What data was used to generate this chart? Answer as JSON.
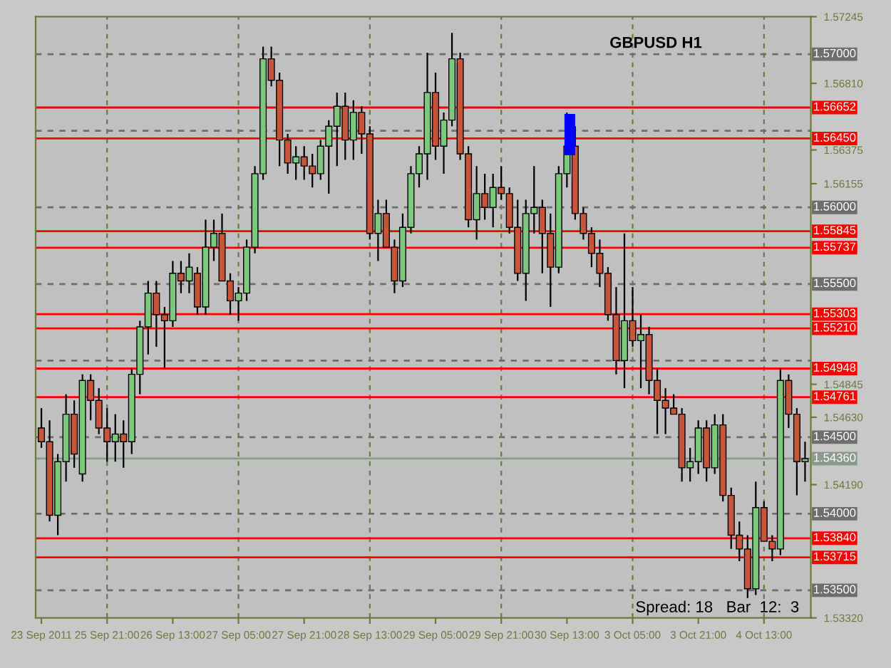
{
  "chart_data": {
    "type": "candlestick",
    "title": "GBPUSD H1",
    "categories": [
      "23 Sep 2011",
      null,
      null,
      null,
      null,
      null,
      null,
      null,
      "25 Sep 21:00",
      null,
      null,
      null,
      null,
      null,
      null,
      null,
      "26 Sep 13:00",
      null,
      null,
      null,
      null,
      null,
      null,
      null,
      "27 Sep 05:00",
      null,
      null,
      null,
      null,
      null,
      null,
      null,
      "27 Sep 21:00",
      null,
      null,
      null,
      null,
      null,
      null,
      null,
      "28 Sep 13:00",
      null,
      null,
      null,
      null,
      null,
      null,
      null,
      "29 Sep 05:00",
      null,
      null,
      null,
      null,
      null,
      null,
      null,
      "29 Sep 21:00",
      null,
      null,
      null,
      null,
      null,
      null,
      null,
      "30 Sep 13:00",
      null,
      null,
      null,
      null,
      null,
      null,
      null,
      "3 Oct 05:00",
      null,
      null,
      null,
      null,
      null,
      null,
      null,
      "3 Oct 21:00",
      null,
      null,
      null,
      null,
      null,
      null,
      null,
      "4 Oct 13:00",
      null,
      null,
      null,
      null,
      null
    ],
    "ohlc": [
      [
        1.5456,
        1.5469,
        1.5443,
        1.5447
      ],
      [
        1.5447,
        1.5461,
        1.5395,
        1.5399
      ],
      [
        1.5399,
        1.5439,
        1.5386,
        1.5434
      ],
      [
        1.5434,
        1.5478,
        1.5421,
        1.5465
      ],
      [
        1.5465,
        1.5474,
        1.543,
        1.5439
      ],
      [
        1.5426,
        1.5491,
        1.5421,
        1.5487
      ],
      [
        1.5487,
        1.5491,
        1.5461,
        1.5474
      ],
      [
        1.5474,
        1.5482,
        1.5452,
        1.5456
      ],
      [
        1.5456,
        1.5469,
        1.5434,
        1.5447
      ],
      [
        1.5447,
        1.5465,
        1.5434,
        1.5452
      ],
      [
        1.5452,
        1.5461,
        1.543,
        1.5447
      ],
      [
        1.5447,
        1.5495,
        1.5439,
        1.5491
      ],
      [
        1.5491,
        1.5526,
        1.5478,
        1.5522
      ],
      [
        1.5522,
        1.5552,
        1.5504,
        1.5544
      ],
      [
        1.5544,
        1.5552,
        1.5509,
        1.553
      ],
      [
        1.553,
        1.5535,
        1.5495,
        1.5526
      ],
      [
        1.5526,
        1.5565,
        1.5522,
        1.5557
      ],
      [
        1.5557,
        1.5565,
        1.5544,
        1.5552
      ],
      [
        1.5552,
        1.557,
        1.5544,
        1.5561
      ],
      [
        1.5557,
        1.5561,
        1.553,
        1.5535
      ],
      [
        1.5535,
        1.5592,
        1.553,
        1.5574
      ],
      [
        1.5574,
        1.5592,
        1.5565,
        1.5583
      ],
      [
        1.5583,
        1.5596,
        1.5552,
        1.5552
      ],
      [
        1.5552,
        1.5557,
        1.553,
        1.5539
      ],
      [
        1.5539,
        1.5548,
        1.5526,
        1.5544
      ],
      [
        1.5544,
        1.5579,
        1.5539,
        1.5574
      ],
      [
        1.5574,
        1.5627,
        1.557,
        1.5622
      ],
      [
        1.5622,
        1.5705,
        1.5618,
        1.5697
      ],
      [
        1.5697,
        1.5705,
        1.5679,
        1.5683
      ],
      [
        1.5683,
        1.5688,
        1.5627,
        1.5644
      ],
      [
        1.5644,
        1.5648,
        1.5622,
        1.5629
      ],
      [
        1.5629,
        1.564,
        1.5618,
        1.5633
      ],
      [
        1.5633,
        1.564,
        1.5618,
        1.5627
      ],
      [
        1.5627,
        1.5635,
        1.5613,
        1.5622
      ],
      [
        1.5622,
        1.5644,
        1.5618,
        1.564
      ],
      [
        1.564,
        1.5657,
        1.5609,
        1.5653
      ],
      [
        1.5653,
        1.5675,
        1.5627,
        1.5666
      ],
      [
        1.5666,
        1.5675,
        1.5631,
        1.5644
      ],
      [
        1.5644,
        1.567,
        1.5631,
        1.5662
      ],
      [
        1.5662,
        1.5666,
        1.5635,
        1.5648
      ],
      [
        1.5648,
        1.5653,
        1.5579,
        1.5583
      ],
      [
        1.5583,
        1.5605,
        1.5565,
        1.5596
      ],
      [
        1.5596,
        1.5605,
        1.5574,
        1.5574
      ],
      [
        1.5574,
        1.5579,
        1.5544,
        1.5552
      ],
      [
        1.5552,
        1.5596,
        1.5548,
        1.5587
      ],
      [
        1.5587,
        1.5627,
        1.5583,
        1.5622
      ],
      [
        1.5622,
        1.564,
        1.5613,
        1.5635
      ],
      [
        1.5635,
        1.5701,
        1.5618,
        1.5675
      ],
      [
        1.5675,
        1.5688,
        1.5631,
        1.564
      ],
      [
        1.564,
        1.5662,
        1.5622,
        1.5657
      ],
      [
        1.5657,
        1.5714,
        1.5653,
        1.5697
      ],
      [
        1.5697,
        1.5701,
        1.5631,
        1.5635
      ],
      [
        1.5635,
        1.564,
        1.5587,
        1.5592
      ],
      [
        1.5592,
        1.5627,
        1.5579,
        1.5609
      ],
      [
        1.5609,
        1.5622,
        1.5592,
        1.56
      ],
      [
        1.56,
        1.5622,
        1.5587,
        1.5613
      ],
      [
        1.5613,
        1.5627,
        1.5605,
        1.5609
      ],
      [
        1.5609,
        1.5613,
        1.5583,
        1.5587
      ],
      [
        1.5587,
        1.5605,
        1.5552,
        1.5557
      ],
      [
        1.5557,
        1.5605,
        1.5539,
        1.5596
      ],
      [
        1.5596,
        1.5627,
        1.5583,
        1.56
      ],
      [
        1.56,
        1.5605,
        1.5557,
        1.5583
      ],
      [
        1.5583,
        1.5596,
        1.5535,
        1.5561
      ],
      [
        1.5561,
        1.5627,
        1.5557,
        1.5622
      ],
      [
        1.5622,
        1.5662,
        1.5613,
        1.564
      ],
      [
        1.564,
        1.5653,
        1.5592,
        1.5596
      ],
      [
        1.5596,
        1.56,
        1.5579,
        1.5583
      ],
      [
        1.5583,
        1.5587,
        1.5561,
        1.557
      ],
      [
        1.557,
        1.5579,
        1.5548,
        1.5557
      ],
      [
        1.5557,
        1.5561,
        1.5526,
        1.553
      ],
      [
        1.553,
        1.5548,
        1.5491,
        1.55
      ],
      [
        1.55,
        1.5583,
        1.5482,
        1.5526
      ],
      [
        1.5526,
        1.5548,
        1.5509,
        1.5513
      ],
      [
        1.5513,
        1.553,
        1.5482,
        1.5517
      ],
      [
        1.5517,
        1.5522,
        1.5478,
        1.5487
      ],
      [
        1.5487,
        1.5495,
        1.5452,
        1.5474
      ],
      [
        1.5474,
        1.5482,
        1.5452,
        1.5469
      ],
      [
        1.5469,
        1.5478,
        1.5465,
        1.5465
      ],
      [
        1.5465,
        1.5469,
        1.5421,
        1.543
      ],
      [
        1.543,
        1.5443,
        1.5421,
        1.5434
      ],
      [
        1.5434,
        1.5461,
        1.5426,
        1.5456
      ],
      [
        1.5456,
        1.5461,
        1.5421,
        1.543
      ],
      [
        1.543,
        1.5465,
        1.5426,
        1.5458
      ],
      [
        1.5458,
        1.5465,
        1.5408,
        1.5412
      ],
      [
        1.5412,
        1.5417,
        1.5377,
        1.5386
      ],
      [
        1.5386,
        1.5395,
        1.5369,
        1.5377
      ],
      [
        1.5377,
        1.5386,
        1.5345,
        1.5351
      ],
      [
        1.5351,
        1.5421,
        1.5347,
        1.5404
      ],
      [
        1.5404,
        1.5408,
        1.5382,
        1.5382
      ],
      [
        1.5382,
        1.5386,
        1.5369,
        1.5377
      ],
      [
        1.5377,
        1.5495,
        1.5373,
        1.5487
      ],
      [
        1.5487,
        1.5491,
        1.5456,
        1.5465
      ],
      [
        1.5465,
        1.5469,
        1.5412,
        1.5434
      ],
      [
        1.5434,
        1.5447,
        1.5421,
        1.5436
      ]
    ],
    "ylim": [
      1.5332,
      1.57245
    ],
    "yticks": [
      {
        "value": 1.57245,
        "label": "1.57245"
      },
      {
        "value": 1.5681,
        "label": "1.56810"
      },
      {
        "value": 1.56375,
        "label": "1.56375"
      },
      {
        "value": 1.56155,
        "label": "1.56155"
      },
      {
        "value": 1.54845,
        "label": "1.54845"
      },
      {
        "value": 1.5463,
        "label": "1.54630"
      },
      {
        "value": 1.5419,
        "label": "1.54190"
      },
      {
        "value": 1.5332,
        "label": "1.53320"
      }
    ],
    "ref_lines": [
      {
        "axis": "y",
        "value": 1.57,
        "label": "1.57000",
        "color": "#6e6e6e",
        "line_style": "dashed"
      },
      {
        "axis": "y",
        "value": 1.565,
        "label": null,
        "color": "#6e6e6e",
        "line_style": "dashed"
      },
      {
        "axis": "y",
        "value": 1.56,
        "label": "1.56000",
        "color": "#6e6e6e",
        "line_style": "dashed"
      },
      {
        "axis": "y",
        "value": 1.555,
        "label": "1.55500",
        "color": "#6e6e6e",
        "line_style": "dashed"
      },
      {
        "axis": "y",
        "value": 1.55,
        "label": null,
        "color": "#6e6e6e",
        "line_style": "dashed"
      },
      {
        "axis": "y",
        "value": 1.545,
        "label": "1.54500",
        "color": "#6e6e6e",
        "line_style": "dashed"
      },
      {
        "axis": "y",
        "value": 1.54,
        "label": "1.54000",
        "color": "#6e6e6e",
        "line_style": "dashed"
      },
      {
        "axis": "y",
        "value": 1.535,
        "label": "1.53500",
        "color": "#6e6e6e",
        "line_style": "dashed"
      },
      {
        "axis": "y",
        "value": 1.5436,
        "label": "1.54360",
        "color": "#8c9a8c",
        "line_style": "solid"
      },
      {
        "axis": "y",
        "value": 1.56652,
        "label": "1.56652",
        "color": "#ff0000",
        "line_style": "solid"
      },
      {
        "axis": "y",
        "value": 1.5645,
        "label": "1.56450",
        "color": "#ff0000",
        "line_style": "solid"
      },
      {
        "axis": "y",
        "value": 1.55845,
        "label": "1.55845",
        "color": "#ff0000",
        "line_style": "solid"
      },
      {
        "axis": "y",
        "value": 1.55737,
        "label": "1.55737",
        "color": "#ff0000",
        "line_style": "solid"
      },
      {
        "axis": "y",
        "value": 1.55303,
        "label": "1.55303",
        "color": "#ff0000",
        "line_style": "solid"
      },
      {
        "axis": "y",
        "value": 1.5521,
        "label": "1.55210",
        "color": "#ff0000",
        "line_style": "solid"
      },
      {
        "axis": "y",
        "value": 1.54948,
        "label": "1.54948",
        "color": "#ff0000",
        "line_style": "solid"
      },
      {
        "axis": "y",
        "value": 1.54761,
        "label": "1.54761",
        "color": "#ff0000",
        "line_style": "solid"
      },
      {
        "axis": "y",
        "value": 1.5384,
        "label": "1.53840",
        "color": "#ff0000",
        "line_style": "solid"
      },
      {
        "axis": "y",
        "value": 1.53715,
        "label": "1.53715",
        "color": "#ff0000",
        "line_style": "solid"
      },
      {
        "axis": "x",
        "value": "25 Sep 21:00",
        "color": "#6b7b3b",
        "line_style": "dashed"
      },
      {
        "axis": "x",
        "value": "27 Sep 05:00",
        "color": "#6b7b3b",
        "line_style": "dashed"
      },
      {
        "axis": "x",
        "value": "28 Sep 13:00",
        "color": "#6b7b3b",
        "line_style": "dashed"
      },
      {
        "axis": "x",
        "value": "29 Sep 21:00",
        "color": "#6b7b3b",
        "line_style": "dashed"
      },
      {
        "axis": "x",
        "value": "3 Oct 05:00",
        "color": "#6b7b3b",
        "line_style": "dashed"
      },
      {
        "axis": "x",
        "value": "4 Oct 13:00",
        "color": "#6b7b3b",
        "line_style": "dashed"
      }
    ],
    "annotations": [
      "Spread: 18   Bar  12:  3"
    ]
  }
}
